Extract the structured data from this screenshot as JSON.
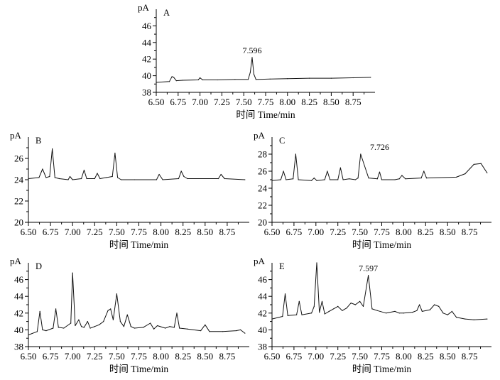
{
  "figure": {
    "title": ""
  },
  "chart_data": [
    {
      "id": "A",
      "type": "line",
      "panel_label": "A",
      "ylabel": "pA",
      "xlabel": "时间 Time/min",
      "xlim": [
        6.5,
        9.0
      ],
      "ylim": [
        38,
        48
      ],
      "xticks": [
        "6.50",
        "6.75",
        "7.00",
        "7.25",
        "7.50",
        "7.75",
        "8.00",
        "8.25",
        "8.50",
        "8.75"
      ],
      "yticks": [
        "38",
        "40",
        "42",
        "44",
        "46"
      ],
      "annotations": [
        {
          "text": "7.596",
          "x": 7.596,
          "y": 42.2
        }
      ],
      "x": [
        6.5,
        6.65,
        6.68,
        6.7,
        6.73,
        6.8,
        6.98,
        7.0,
        7.03,
        7.2,
        7.4,
        7.55,
        7.575,
        7.596,
        7.615,
        7.64,
        7.8,
        8.0,
        8.25,
        8.5,
        8.75,
        8.95
      ],
      "y": [
        39.2,
        39.3,
        39.9,
        39.8,
        39.4,
        39.45,
        39.5,
        39.75,
        39.5,
        39.5,
        39.55,
        39.55,
        40.4,
        42.2,
        40.2,
        39.55,
        39.6,
        39.65,
        39.7,
        39.7,
        39.75,
        39.8
      ]
    },
    {
      "id": "B",
      "type": "line",
      "panel_label": "B",
      "ylabel": "pA",
      "xlabel": "时间 Time/min",
      "xlim": [
        6.5,
        9.0
      ],
      "ylim": [
        20,
        28
      ],
      "xticks": [
        "6.50",
        "6.75",
        "7.00",
        "7.25",
        "7.50",
        "7.75",
        "8.00",
        "8.25",
        "8.50",
        "8.75"
      ],
      "yticks": [
        "20",
        "22",
        "24",
        "26"
      ],
      "annotations": [],
      "x": [
        6.5,
        6.62,
        6.66,
        6.7,
        6.74,
        6.77,
        6.8,
        6.85,
        6.95,
        6.97,
        7.0,
        7.1,
        7.13,
        7.16,
        7.25,
        7.28,
        7.31,
        7.38,
        7.45,
        7.48,
        7.51,
        7.55,
        7.7,
        7.95,
        7.98,
        8.02,
        8.2,
        8.23,
        8.26,
        8.3,
        8.65,
        8.68,
        8.72,
        8.95
      ],
      "y": [
        24.1,
        24.2,
        25.0,
        24.2,
        24.3,
        26.9,
        24.2,
        24.1,
        24.0,
        24.3,
        24.0,
        24.1,
        24.9,
        24.1,
        24.1,
        24.6,
        24.1,
        24.2,
        24.3,
        26.5,
        24.2,
        24.0,
        24.0,
        24.0,
        24.5,
        24.0,
        24.1,
        24.8,
        24.3,
        24.1,
        24.1,
        24.5,
        24.1,
        24.0
      ]
    },
    {
      "id": "C",
      "type": "line",
      "panel_label": "C",
      "ylabel": "pA",
      "xlabel": "时间 Time/min",
      "xlim": [
        6.5,
        9.0
      ],
      "ylim": [
        20,
        30
      ],
      "xticks": [
        "6.50",
        "6.75",
        "7.00",
        "7.25",
        "7.50",
        "7.75",
        "8.00",
        "8.25",
        "8.50",
        "8.75"
      ],
      "yticks": [
        "20",
        "22",
        "24",
        "26",
        "28"
      ],
      "annotations": [
        {
          "text": "7.726",
          "x": 7.726,
          "y": 28
        }
      ],
      "x": [
        6.5,
        6.6,
        6.63,
        6.66,
        6.74,
        6.77,
        6.8,
        6.95,
        6.98,
        7.01,
        7.1,
        7.13,
        7.16,
        7.25,
        7.28,
        7.31,
        7.38,
        7.45,
        7.48,
        7.51,
        7.6,
        7.7,
        7.726,
        7.75,
        7.9,
        7.95,
        7.98,
        8.02,
        8.2,
        8.23,
        8.26,
        8.6,
        8.7,
        8.8,
        8.88,
        8.95
      ],
      "y": [
        24.9,
        25.0,
        26.0,
        25.0,
        25.1,
        28.0,
        25.0,
        24.9,
        25.2,
        24.9,
        25.0,
        26.0,
        25.0,
        25.0,
        26.4,
        25.0,
        25.1,
        25.0,
        25.2,
        28.0,
        25.2,
        25.1,
        25.9,
        25.0,
        25.0,
        25.1,
        25.5,
        25.1,
        25.2,
        26.0,
        25.2,
        25.3,
        25.7,
        26.8,
        26.9,
        25.8
      ]
    },
    {
      "id": "D",
      "type": "line",
      "panel_label": "D",
      "ylabel": "pA",
      "xlabel": "时间 Time/min",
      "xlim": [
        6.5,
        9.0
      ],
      "ylim": [
        38,
        48
      ],
      "xticks": [
        "6.50",
        "6.75",
        "7.00",
        "7.25",
        "7.50",
        "7.75",
        "8.00",
        "8.25",
        "8.50",
        "8.75"
      ],
      "yticks": [
        "38",
        "40",
        "42",
        "44",
        "46"
      ],
      "annotations": [],
      "x": [
        6.5,
        6.6,
        6.63,
        6.66,
        6.7,
        6.78,
        6.81,
        6.84,
        6.9,
        6.98,
        7.0,
        7.03,
        7.07,
        7.1,
        7.13,
        7.17,
        7.2,
        7.25,
        7.3,
        7.35,
        7.4,
        7.43,
        7.46,
        7.5,
        7.54,
        7.58,
        7.62,
        7.66,
        7.7,
        7.8,
        7.88,
        7.92,
        7.96,
        8.05,
        8.1,
        8.15,
        8.18,
        8.21,
        8.3,
        8.45,
        8.5,
        8.55,
        8.7,
        8.85,
        8.9,
        8.95
      ],
      "y": [
        39.4,
        39.8,
        42.2,
        40.0,
        39.9,
        40.2,
        42.5,
        40.3,
        40.2,
        40.8,
        46.8,
        40.5,
        41.2,
        40.4,
        40.3,
        41.0,
        40.2,
        40.4,
        40.6,
        41.0,
        42.3,
        42.5,
        41.2,
        44.3,
        41.0,
        40.4,
        41.8,
        40.4,
        40.2,
        40.3,
        40.8,
        40.1,
        40.5,
        40.2,
        40.4,
        40.3,
        42.0,
        40.2,
        40.1,
        39.9,
        40.6,
        39.8,
        39.8,
        39.9,
        40.0,
        39.6
      ]
    },
    {
      "id": "E",
      "type": "line",
      "panel_label": "E",
      "ylabel": "pA",
      "xlabel": "时间 Time/min",
      "xlim": [
        6.5,
        9.0
      ],
      "ylim": [
        38,
        48
      ],
      "xticks": [
        "6.50",
        "6.75",
        "7.00",
        "7.25",
        "7.50",
        "7.75",
        "8.00",
        "8.25",
        "8.50",
        "8.75"
      ],
      "yticks": [
        "38",
        "40",
        "42",
        "44",
        "46"
      ],
      "annotations": [
        {
          "text": "7.597",
          "x": 7.597,
          "y": 46.5
        }
      ],
      "x": [
        6.5,
        6.62,
        6.65,
        6.68,
        6.78,
        6.81,
        6.84,
        6.95,
        6.98,
        7.01,
        7.04,
        7.07,
        7.1,
        7.15,
        7.2,
        7.25,
        7.3,
        7.35,
        7.4,
        7.45,
        7.5,
        7.54,
        7.597,
        7.64,
        7.7,
        7.8,
        7.9,
        7.95,
        8.0,
        8.1,
        8.15,
        8.18,
        8.21,
        8.3,
        8.35,
        8.4,
        8.45,
        8.5,
        8.55,
        8.6,
        8.7,
        8.8,
        8.95
      ],
      "y": [
        41.3,
        41.6,
        44.3,
        41.7,
        41.8,
        43.4,
        41.8,
        42.0,
        42.8,
        48.0,
        42.1,
        43.4,
        41.9,
        42.2,
        42.5,
        42.8,
        42.3,
        42.6,
        43.2,
        43.0,
        43.4,
        42.8,
        46.5,
        42.5,
        42.3,
        42.0,
        42.2,
        42.0,
        42.0,
        42.1,
        42.3,
        43.0,
        42.2,
        42.4,
        43.0,
        42.8,
        42.0,
        41.8,
        42.2,
        41.5,
        41.3,
        41.2,
        41.3
      ]
    }
  ]
}
